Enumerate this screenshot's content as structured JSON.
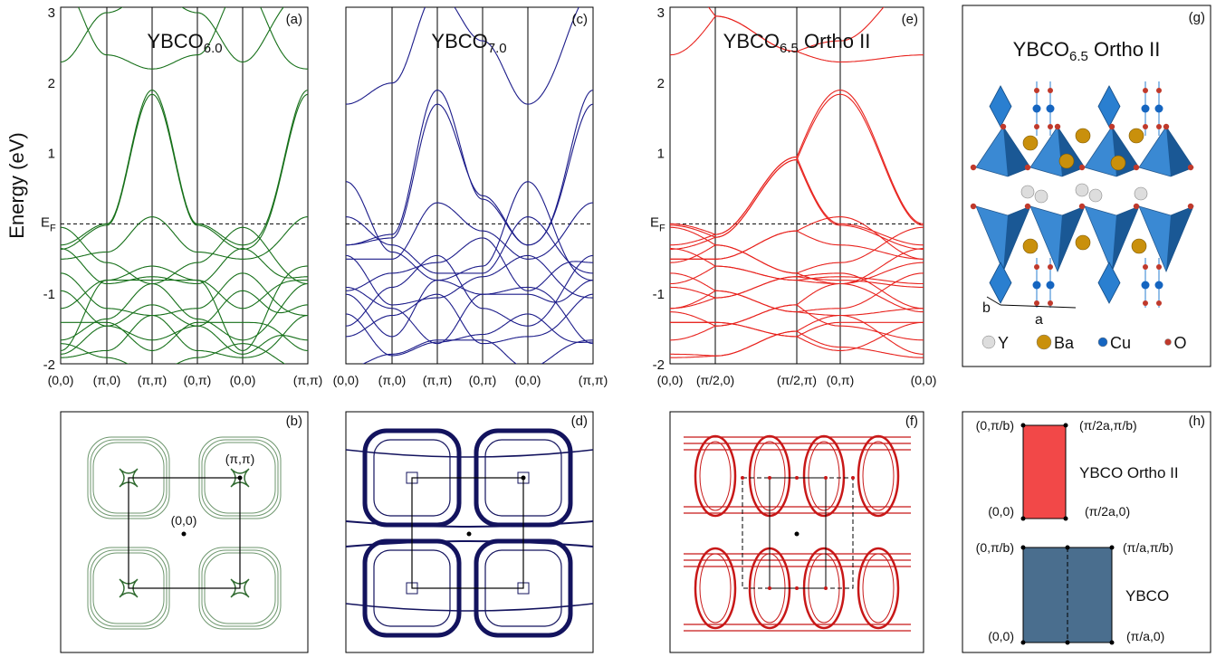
{
  "y_axis_label": "Energy  (eV)",
  "energy_ticks": [
    "3",
    "2",
    "1",
    "-1",
    "-2"
  ],
  "fermi_level": {
    "text": "E",
    "sub": "F"
  },
  "panels": {
    "a": {
      "label": "(a)",
      "title": "YBCO",
      "title_sub": "6.0",
      "k_points": [
        "(0,0)",
        "(π,0)",
        "(π,π)",
        "(0,π)",
        "(0,0)",
        "(π,π)"
      ]
    },
    "c": {
      "label": "(c)",
      "title": "YBCO",
      "title_sub": "7.0",
      "k_points": [
        "(0,0)",
        "(π,0)",
        "(π,π)",
        "(0,π)",
        "(0,0)",
        "(π,π)"
      ]
    },
    "e": {
      "label": "(e)",
      "title": "YBCO",
      "title_sub": "6.5",
      "title_suffix": " Ortho II",
      "k_points": [
        "(0,0)",
        "(π/2,0)",
        "(π/2,π)",
        "(0,π)",
        "(0,0)"
      ]
    },
    "b": {
      "label": "(b)",
      "point_labels": [
        "(π,π)",
        "(0,0)"
      ]
    },
    "d": {
      "label": "(d)"
    },
    "f": {
      "label": "(f)"
    },
    "g": {
      "label": "(g)",
      "title": "YBCO",
      "title_sub": "6.5",
      "title_suffix": " Ortho II",
      "axis_labels": [
        "b",
        "a"
      ],
      "legend": [
        "Y",
        "Ba",
        "Cu",
        "O"
      ]
    },
    "h": {
      "label": "(h)",
      "ortho": {
        "name": "YBCO Ortho II",
        "corners": [
          "(0,π/b)",
          "(π/2a,π/b)",
          "(0,0)",
          "(π/2a,0)"
        ]
      },
      "tetra": {
        "name": "YBCO",
        "corners": [
          "(0,π/b)",
          "(π/a,π/b)",
          "(0,0)",
          "(π/a,0)"
        ]
      }
    }
  }
}
